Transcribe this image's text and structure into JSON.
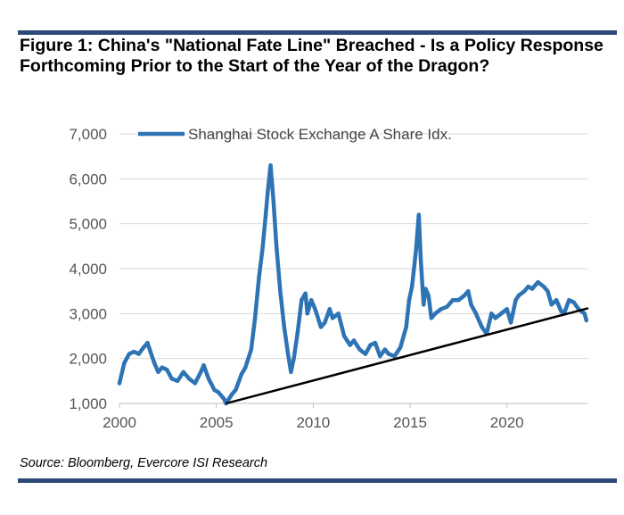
{
  "title": "Figure 1: China's \"National Fate Line\" Breached - Is a Policy Response Forthcoming Prior to the Start of the Year of the Dragon?",
  "source": "Source: Bloomberg, Evercore ISI Research",
  "colors": {
    "series": "#2e74b5",
    "trendline": "#000000",
    "rule": "#2b4a78",
    "grid": "#d9d9d9"
  },
  "chart_data": {
    "type": "line",
    "title": "",
    "xlabel": "",
    "ylabel": "",
    "xlim": [
      2000,
      2024.2
    ],
    "ylim": [
      1000,
      7000
    ],
    "grid": "horizontal",
    "legend": "top",
    "x_ticks": [
      2000,
      2005,
      2010,
      2015,
      2020
    ],
    "x_tick_labels": [
      "2000",
      "2005",
      "2010",
      "2015",
      "2020"
    ],
    "y_ticks": [
      1000,
      2000,
      3000,
      4000,
      5000,
      6000,
      7000
    ],
    "y_tick_labels": [
      "1,000",
      "2,000",
      "3,000",
      "4,000",
      "5,000",
      "6,000",
      "7,000"
    ],
    "series": [
      {
        "name": "Shanghai Stock Exchange A Share Idx.",
        "color": "#2e74b5",
        "x": [
          2000.0,
          2000.25,
          2000.5,
          2000.75,
          2001.0,
          2001.25,
          2001.45,
          2001.6,
          2001.8,
          2002.0,
          2002.2,
          2002.45,
          2002.7,
          2003.0,
          2003.3,
          2003.6,
          2003.9,
          2004.2,
          2004.35,
          2004.6,
          2004.9,
          2005.1,
          2005.4,
          2005.5,
          2005.8,
          2006.0,
          2006.3,
          2006.5,
          2006.8,
          2007.0,
          2007.2,
          2007.4,
          2007.55,
          2007.65,
          2007.8,
          2007.95,
          2008.1,
          2008.3,
          2008.5,
          2008.7,
          2008.85,
          2009.0,
          2009.2,
          2009.4,
          2009.6,
          2009.7,
          2009.9,
          2010.1,
          2010.4,
          2010.6,
          2010.85,
          2011.0,
          2011.3,
          2011.6,
          2011.9,
          2012.1,
          2012.4,
          2012.7,
          2012.95,
          2013.2,
          2013.45,
          2013.7,
          2013.9,
          2014.2,
          2014.5,
          2014.8,
          2014.95,
          2015.1,
          2015.3,
          2015.45,
          2015.55,
          2015.7,
          2015.8,
          2015.95,
          2016.1,
          2016.3,
          2016.6,
          2016.9,
          2017.2,
          2017.5,
          2017.8,
          2018.0,
          2018.15,
          2018.4,
          2018.7,
          2018.95,
          2019.2,
          2019.4,
          2019.7,
          2020.0,
          2020.2,
          2020.45,
          2020.6,
          2020.9,
          2021.1,
          2021.3,
          2021.6,
          2021.9,
          2022.1,
          2022.3,
          2022.55,
          2022.8,
          2022.95,
          2023.2,
          2023.45,
          2023.7,
          2023.85,
          2024.0,
          2024.1
        ],
        "y": [
          1450,
          1900,
          2100,
          2150,
          2100,
          2250,
          2350,
          2150,
          1900,
          1700,
          1800,
          1750,
          1550,
          1500,
          1700,
          1550,
          1450,
          1700,
          1850,
          1550,
          1300,
          1250,
          1100,
          1000,
          1200,
          1300,
          1650,
          1800,
          2200,
          2900,
          3800,
          4500,
          5200,
          5700,
          6300,
          5500,
          4500,
          3500,
          2700,
          2100,
          1700,
          2000,
          2600,
          3300,
          3450,
          3000,
          3300,
          3100,
          2700,
          2800,
          3100,
          2900,
          3000,
          2500,
          2300,
          2400,
          2200,
          2100,
          2300,
          2350,
          2050,
          2200,
          2100,
          2050,
          2250,
          2700,
          3300,
          3600,
          4400,
          5200,
          4200,
          3200,
          3550,
          3400,
          2900,
          3000,
          3100,
          3150,
          3300,
          3300,
          3400,
          3500,
          3200,
          3000,
          2700,
          2550,
          3000,
          2900,
          3000,
          3100,
          2800,
          3300,
          3400,
          3500,
          3600,
          3550,
          3700,
          3600,
          3500,
          3200,
          3300,
          3050,
          3000,
          3300,
          3250,
          3100,
          3050,
          3000,
          2850
        ]
      }
    ],
    "trendline": {
      "x": [
        2005.5,
        2024.2
      ],
      "y": [
        1000,
        3120
      ]
    }
  }
}
